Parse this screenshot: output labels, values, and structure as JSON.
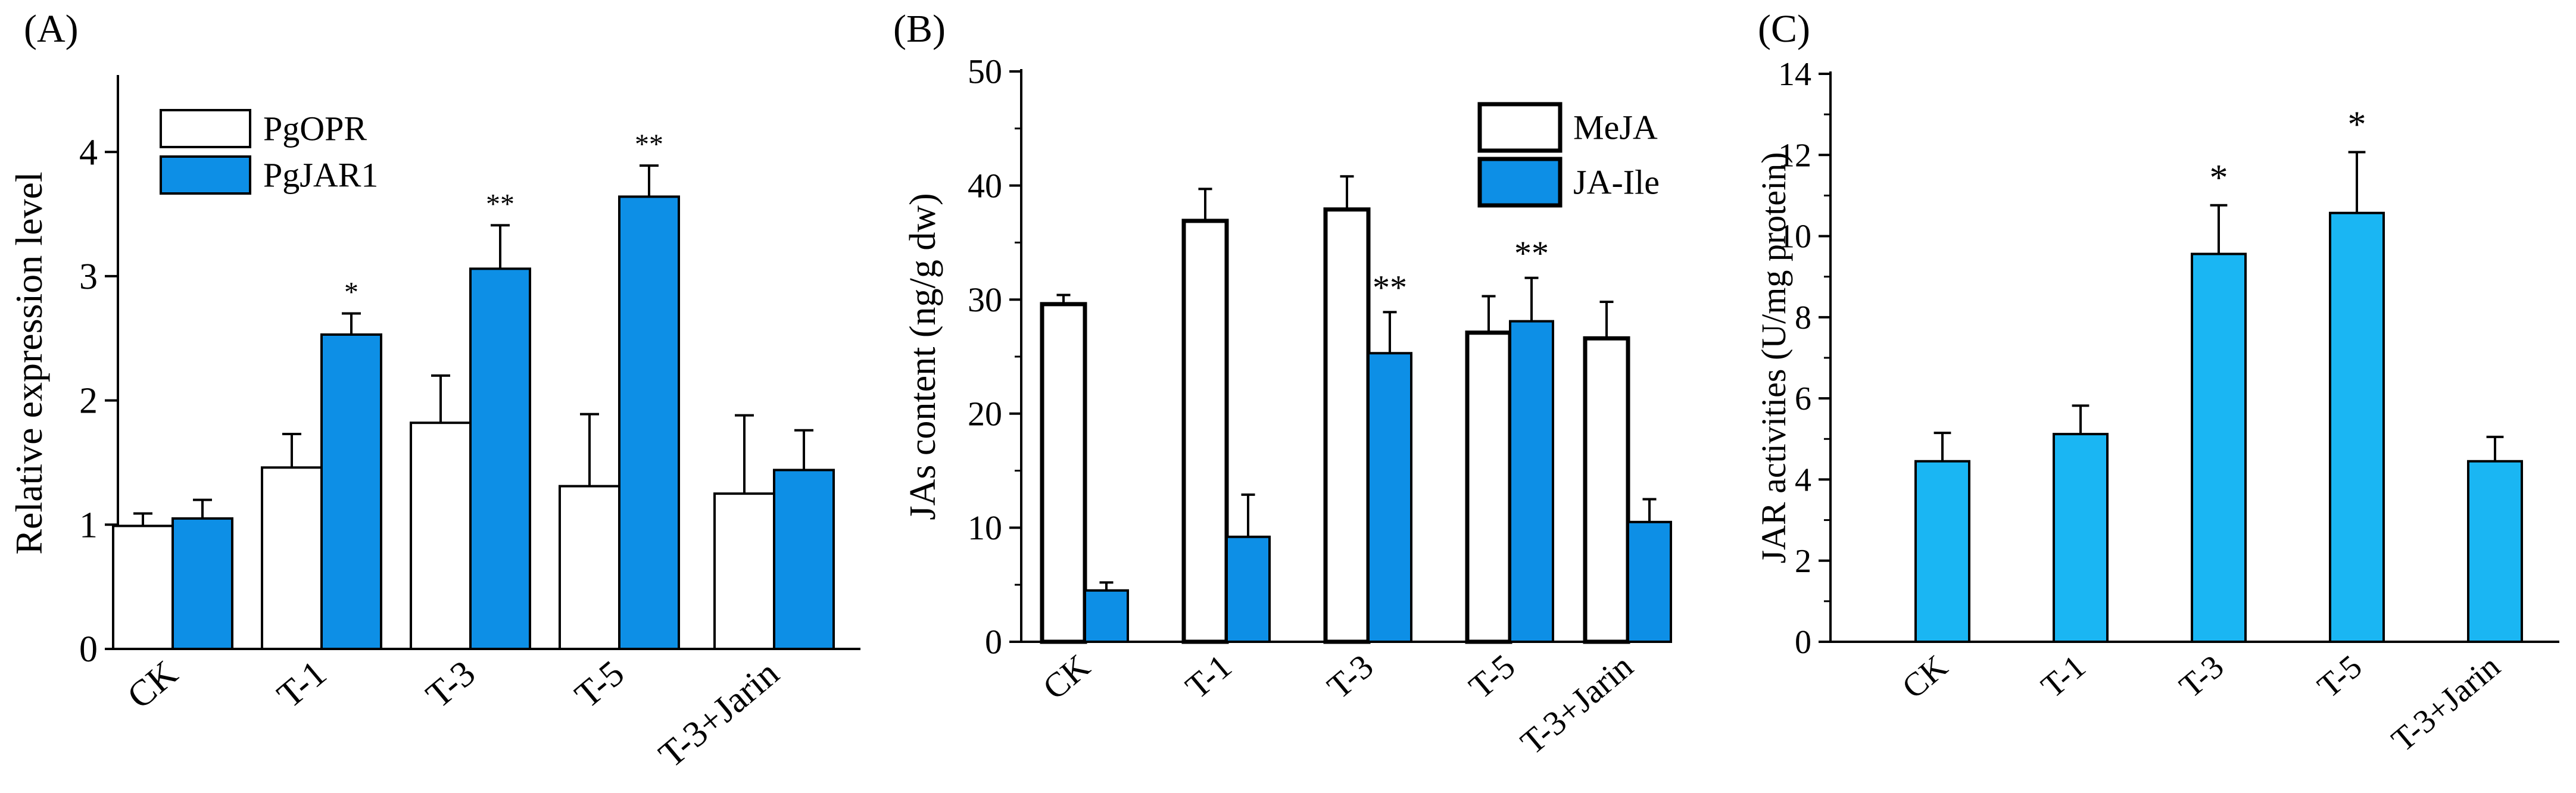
{
  "panel_labels": [
    "(A)",
    "(B)",
    "(C)"
  ],
  "colors": {
    "blue_ab": "#0d8fe6",
    "blue_c": "#1ab6f3",
    "white": "#ffffff",
    "axis": "#000000"
  },
  "chart_data": [
    {
      "type": "bar",
      "title": "",
      "xlabel": "",
      "ylabel": "Relative expression level",
      "ylim": [
        0,
        4.6
      ],
      "yticks": [
        "0",
        "1",
        "2",
        "3",
        "4"
      ],
      "categories": [
        "CK",
        "T-1",
        "T-3",
        "T-5",
        "T-3+Jarin"
      ],
      "legend": {
        "position": "top-left"
      },
      "series": [
        {
          "name": "PgOPR",
          "color": "#ffffff",
          "values": [
            0.99,
            1.46,
            1.82,
            1.31,
            1.25
          ],
          "errors": [
            0.1,
            0.27,
            0.38,
            0.58,
            0.63
          ],
          "sig": [
            "",
            "",
            "",
            "",
            ""
          ]
        },
        {
          "name": "PgJAR1",
          "color": "#0d8fe6",
          "values": [
            1.05,
            2.53,
            3.06,
            3.64,
            1.44
          ],
          "errors": [
            0.15,
            0.17,
            0.35,
            0.25,
            0.32
          ],
          "sig": [
            "",
            "*",
            "**",
            "**",
            ""
          ]
        }
      ],
      "grid": false
    },
    {
      "type": "bar",
      "title": "",
      "xlabel": "",
      "ylabel": "JAs content (ng/g dw)",
      "ylim": [
        0,
        50
      ],
      "yticks": [
        "0",
        "10",
        "20",
        "30",
        "40",
        "50"
      ],
      "categories": [
        "CK",
        "T-1",
        "T-3",
        "T-5",
        "T-3+Jarin"
      ],
      "legend": {
        "position": "top-right"
      },
      "series": [
        {
          "name": "MeJA",
          "color": "#ffffff",
          "values": [
            29.6,
            36.9,
            37.9,
            27.1,
            26.6
          ],
          "errors": [
            0.8,
            2.8,
            2.9,
            3.2,
            3.2
          ],
          "sig": [
            "",
            "",
            "",
            "",
            ""
          ]
        },
        {
          "name": "JA-Ile",
          "color": "#0d8fe6",
          "values": [
            4.5,
            9.2,
            25.3,
            28.1,
            10.5
          ],
          "errors": [
            0.7,
            3.7,
            3.6,
            3.8,
            2.0
          ],
          "sig": [
            "",
            "",
            "**",
            "**",
            ""
          ]
        }
      ],
      "grid": false
    },
    {
      "type": "bar",
      "title": "",
      "xlabel": "",
      "ylabel": "JAR activities (U/mg protein)",
      "ylim": [
        0,
        14
      ],
      "yticks": [
        "0",
        "2",
        "4",
        "6",
        "8",
        "10",
        "12",
        "14"
      ],
      "categories": [
        "CK",
        "T-1",
        "T-3",
        "T-5",
        "T-3+Jarin"
      ],
      "series": [
        {
          "color": "#1ab6f3",
          "values": [
            4.45,
            5.12,
            9.56,
            10.57,
            4.45
          ],
          "errors": [
            0.7,
            0.7,
            1.2,
            1.5,
            0.6
          ],
          "sig": [
            "",
            "",
            "*",
            "*",
            ""
          ]
        }
      ],
      "grid": false
    }
  ]
}
